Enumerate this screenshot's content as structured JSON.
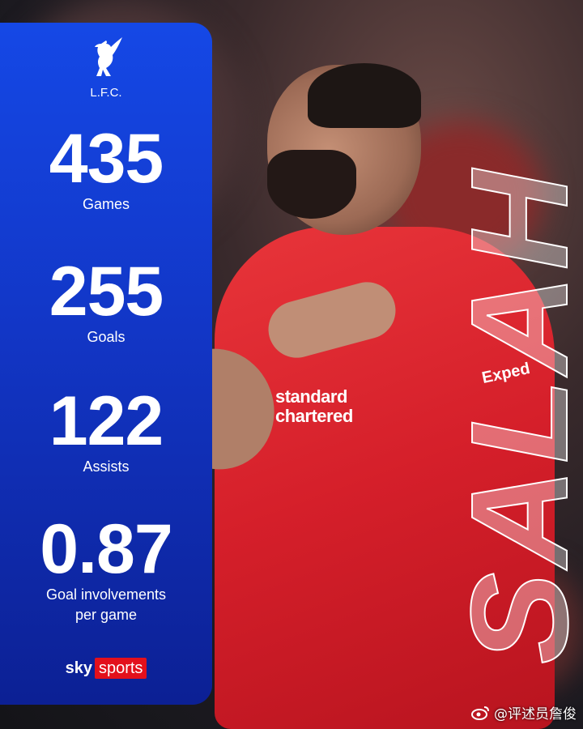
{
  "club": {
    "name": "L.F.C.",
    "crest_icon": "liver-bird-icon"
  },
  "stats": [
    {
      "value": "435",
      "label": "Games"
    },
    {
      "value": "255",
      "label": "Goals"
    },
    {
      "value": "122",
      "label": "Assists"
    },
    {
      "value": "0.87",
      "label_line1": "Goal involvements",
      "label_line2": "per game"
    }
  ],
  "player": {
    "name": "SALAH",
    "sponsor_line1": "standard",
    "sponsor_line2": "chartered",
    "sleeve_sponsor": "Exped"
  },
  "brand": {
    "sky": "sky",
    "sports": "sports",
    "red": "#e3101c"
  },
  "watermark": {
    "text": "@评述员詹俊",
    "icon": "weibo-icon"
  },
  "colors": {
    "panel_top": "#1548e6",
    "panel_bottom": "#0c2094",
    "jersey": "#d51f2a"
  }
}
